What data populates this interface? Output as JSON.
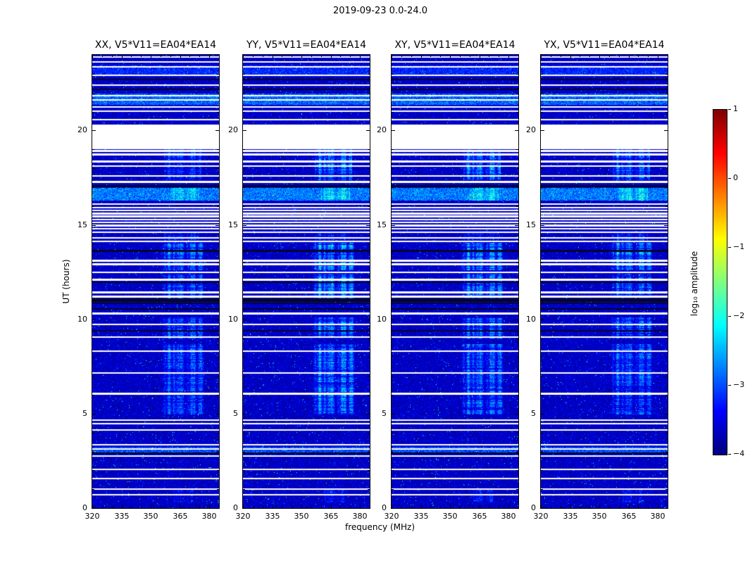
{
  "chart_data": {
    "type": "heatmap",
    "title": "2019-09-23 0.0-24.0",
    "xlabel": "frequency (MHz)",
    "ylabel": "UT (hours)",
    "panels": [
      {
        "title": "XX, V5*V11=EA04*EA14",
        "intensity_scale": 0.75
      },
      {
        "title": "YY, V5*V11=EA04*EA14",
        "intensity_scale": 1.0
      },
      {
        "title": "XY, V5*V11=EA04*EA14",
        "intensity_scale": 0.92
      },
      {
        "title": "YX, V5*V11=EA04*EA14",
        "intensity_scale": 0.85
      }
    ],
    "x_axis": {
      "range": [
        320,
        385
      ],
      "ticks": [
        320,
        335,
        350,
        365,
        380
      ],
      "minor_step": 5
    },
    "y_axis": {
      "range": [
        0,
        24
      ],
      "ticks": [
        0,
        5,
        10,
        15,
        20
      ],
      "minor_step": 1
    },
    "colorbar": {
      "range": [
        -4,
        1
      ],
      "ticks": [
        1,
        0,
        -1,
        -2,
        -3,
        -4
      ],
      "label": "log₁₀ amplitude",
      "colormap": "jet"
    },
    "background_level": -3.65,
    "blank_band_ut": [
      19.0,
      20.3
    ],
    "flagged_white_rows_ut": [
      23.88,
      23.63,
      23.37,
      22.92,
      22.4,
      21.84,
      21.61,
      21.24,
      21.02,
      20.57,
      18.92,
      18.72,
      18.35,
      18.12,
      17.6,
      17.28,
      16.1,
      15.92,
      15.76,
      15.6,
      15.44,
      15.28,
      15.12,
      14.96,
      14.8,
      14.6,
      14.32,
      14.12,
      13.1,
      12.92,
      12.48,
      12.1,
      11.42,
      11.2,
      10.3,
      9.72,
      9.05,
      8.32,
      7.15,
      6.05,
      4.66,
      4.47,
      4.14,
      3.35,
      3.13,
      2.76,
      2.05,
      1.57,
      1.01,
      0.71
    ],
    "flagged_black_rows_ut": [
      22.7,
      22.17,
      17.05,
      13.62,
      11.95,
      11.05,
      10.95,
      10.85,
      10.55,
      9.39,
      2.9
    ],
    "enhanced_rows_ut": [
      [
        16.28,
        16.95,
        1.1
      ],
      [
        21.35,
        21.95,
        0.95
      ],
      [
        22.95,
        23.45,
        0.55
      ],
      [
        2.95,
        3.25,
        0.8
      ]
    ],
    "bright_regions": [
      {
        "ut": [
          4.95,
          8.7
        ],
        "freq": [
          356,
          378
        ],
        "level": 1.7
      },
      {
        "ut": [
          9.0,
          10.1
        ],
        "freq": [
          356,
          377
        ],
        "level": 1.8
      },
      {
        "ut": [
          11.1,
          12.4
        ],
        "freq": [
          356,
          377
        ],
        "level": 1.9
      },
      {
        "ut": [
          12.6,
          14.05
        ],
        "freq": [
          355,
          377
        ],
        "level": 2.2
      },
      {
        "ut": [
          14.1,
          14.6
        ],
        "freq": [
          357,
          375
        ],
        "level": 1.1
      },
      {
        "ut": [
          16.28,
          16.95
        ],
        "freq": [
          360,
          375
        ],
        "level": 1.3
      },
      {
        "ut": [
          17.35,
          19.0
        ],
        "freq": [
          357,
          376
        ],
        "level": 1.7
      },
      {
        "ut": [
          0.3,
          1.0
        ],
        "freq": [
          362,
          372
        ],
        "level": 0.9
      }
    ]
  }
}
